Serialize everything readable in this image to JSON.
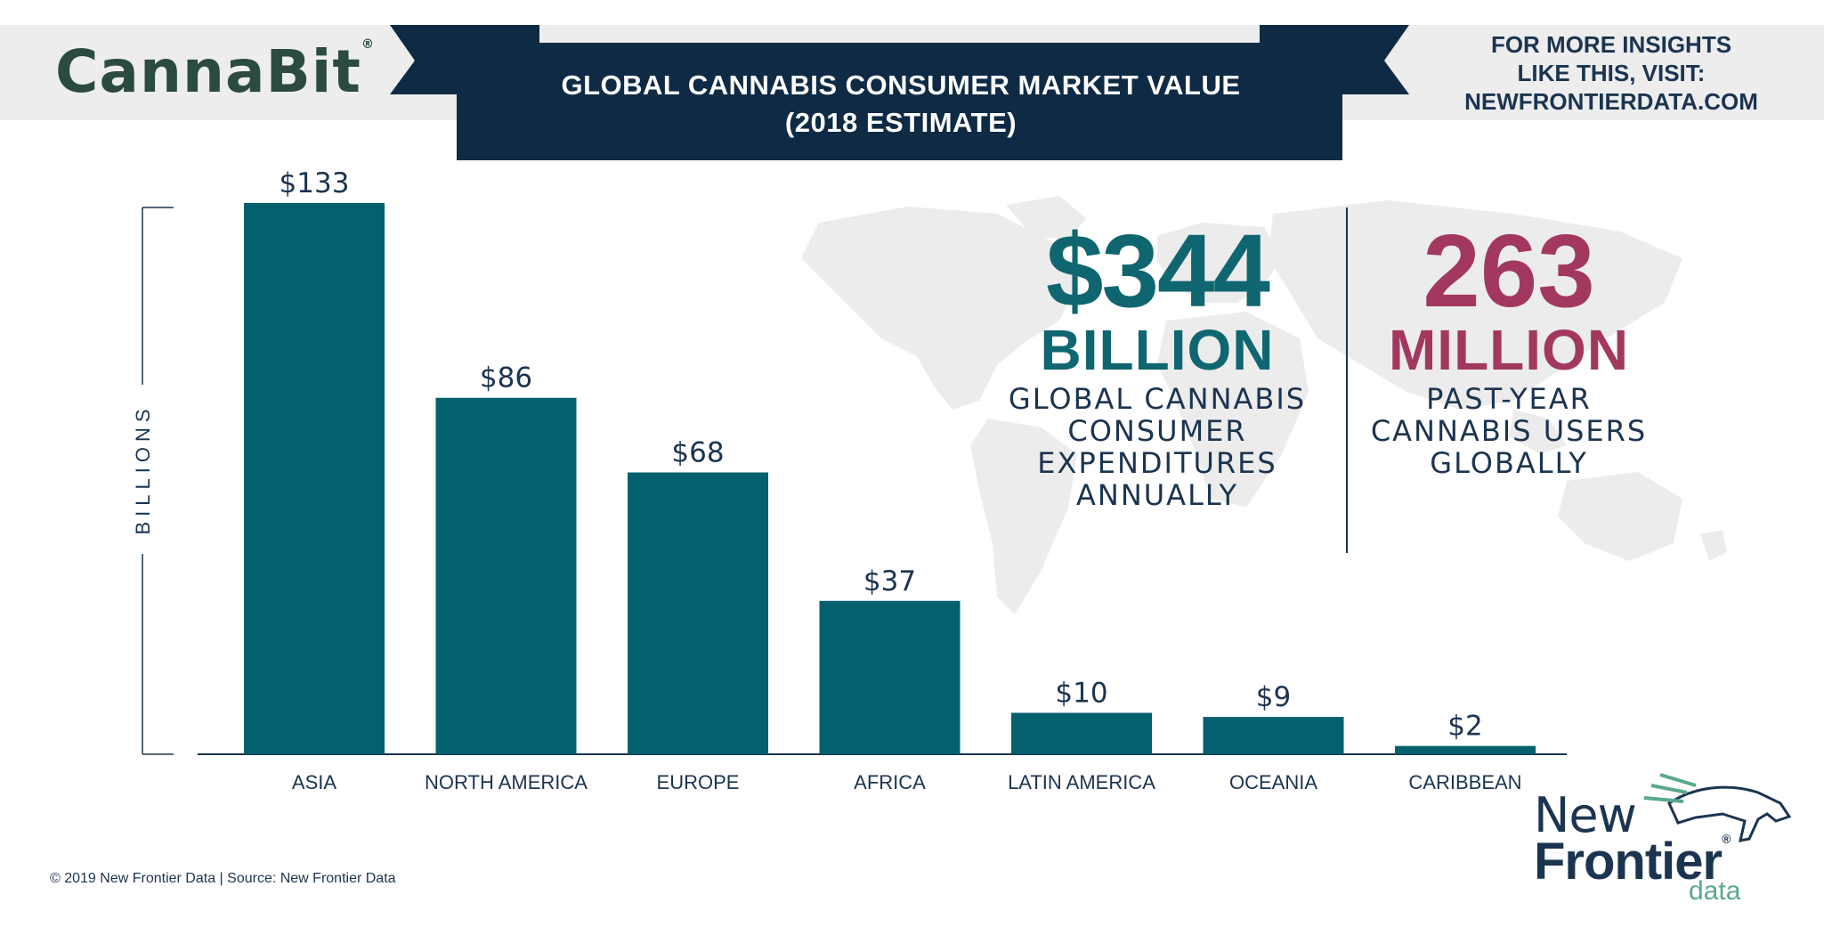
{
  "header": {
    "brand_logo": "CannaBit",
    "title_line1": "GLOBAL CANNABIS CONSUMER MARKET VALUE",
    "title_line2": "(2018 ESTIMATE)",
    "insights_line1": "FOR MORE INSIGHTS",
    "insights_line2": "LIKE THIS, VISIT:",
    "insights_line3": "NEWFRONTIERDATA.COM"
  },
  "chart_data": {
    "type": "bar",
    "title": "GLOBAL CANNABIS CONSUMER MARKET VALUE (2018 ESTIMATE)",
    "xlabel": "",
    "ylabel": "BILLIONS",
    "categories": [
      "ASIA",
      "NORTH AMERICA",
      "EUROPE",
      "AFRICA",
      "LATIN AMERICA",
      "OCEANIA",
      "CARIBBEAN"
    ],
    "values": [
      133,
      86,
      68,
      37,
      10,
      9,
      2
    ],
    "data_labels": [
      "$133",
      "$86",
      "$68",
      "$37",
      "$10",
      "$9",
      "$2"
    ],
    "ylim": [
      0,
      133
    ],
    "grid": false,
    "bar_color": "#03606d"
  },
  "stats": {
    "money": {
      "big": "$344",
      "unit": "BILLION",
      "desc": [
        "GLOBAL CANNABIS",
        "CONSUMER",
        "EXPENDITURES",
        "ANNUALLY"
      ]
    },
    "users": {
      "big": "263",
      "unit": "MILLION",
      "desc": [
        "PAST-YEAR",
        "CANNABIS USERS",
        "GLOBALLY"
      ]
    }
  },
  "footer": {
    "source": "© 2019  New Frontier Data | Source:  New Frontier Data",
    "logo_line1": "New",
    "logo_line2": "Frontier",
    "logo_line3": "data"
  },
  "colors": {
    "navy": "#0e2a44",
    "teal": "#0f6670",
    "bar": "#03606d",
    "magenta": "#a2385f",
    "band": "#ededee",
    "map": "#ececec"
  }
}
